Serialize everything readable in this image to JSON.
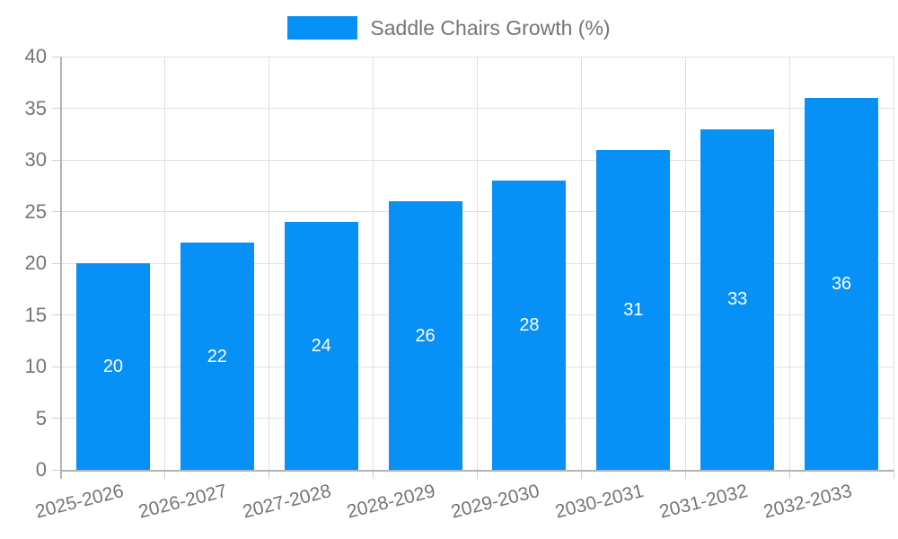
{
  "legend": {
    "label": "Saddle Chairs Growth (%)"
  },
  "chart_data": {
    "type": "bar",
    "title": "Saddle Chairs Growth (%)",
    "categories": [
      "2025-2026",
      "2026-2027",
      "2027-2028",
      "2028-2029",
      "2029-2030",
      "2030-2031",
      "2031-2032",
      "2032-2033"
    ],
    "values": [
      20,
      22,
      24,
      26,
      28,
      31,
      33,
      36
    ],
    "xlabel": "",
    "ylabel": "",
    "ylim": [
      0,
      40
    ],
    "yticks": [
      0,
      5,
      10,
      15,
      20,
      25,
      30,
      35,
      40
    ],
    "grid": true,
    "legend_position": "top",
    "bar_color": "#0790F5",
    "bar_label_color": "#ffffff",
    "grid_color": "#e0e0e0",
    "axis_color": "#b3b3b3",
    "tick_color": "#cfcfcf",
    "tick_text_color": "#757575",
    "x_label_rotation_deg": -14
  }
}
